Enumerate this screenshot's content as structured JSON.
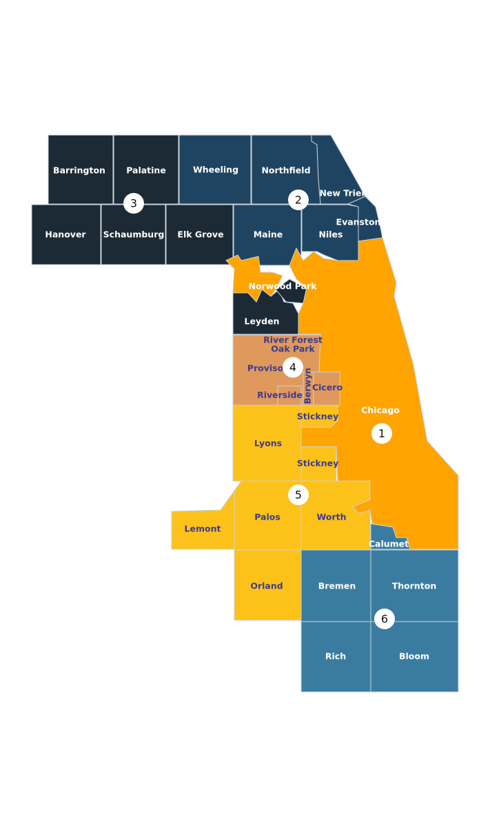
{
  "townships": [
    "Barrington",
    "Palatine",
    "Wheeling",
    "Northfield",
    "New Trier",
    "Evanston",
    "Hanover",
    "Schaumburg",
    "Elk Grove",
    "Maine",
    "Niles",
    "Norwood Park",
    "Leyden",
    "River Forest",
    "Oak Park",
    "Proviso",
    "Berwyn",
    "Cicero",
    "Riverside",
    "Stickney",
    "Stickney",
    "Lyons",
    "Chicago",
    "Lemont",
    "Palos",
    "Worth",
    "Calumet",
    "Orland",
    "Bremen",
    "Thornton",
    "Rich",
    "Bloom"
  ],
  "districts": [
    "1",
    "2",
    "3",
    "4",
    "5",
    "6"
  ]
}
